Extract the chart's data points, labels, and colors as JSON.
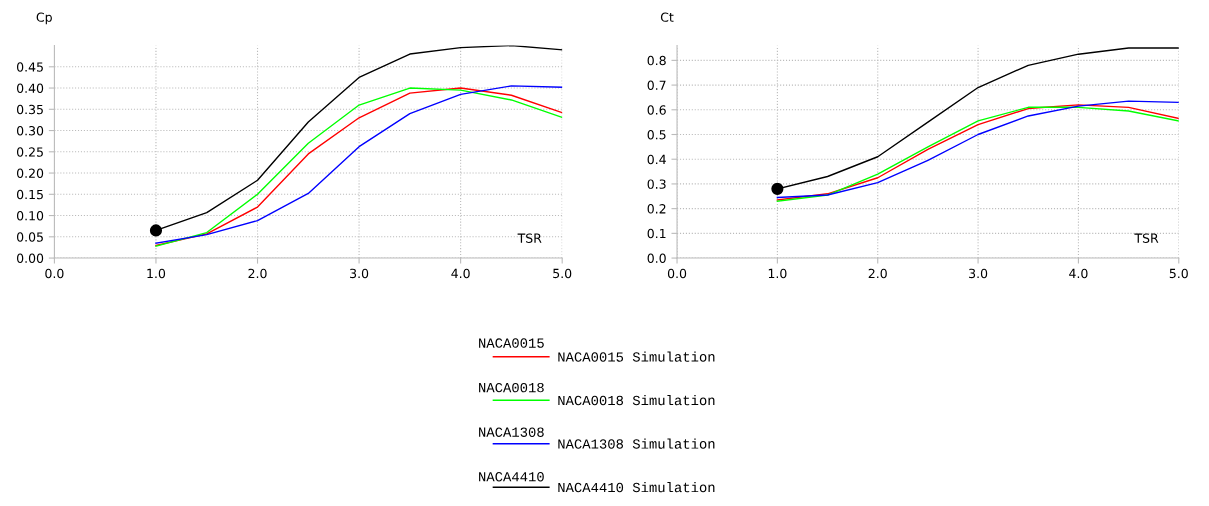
{
  "chart_data": [
    {
      "type": "line",
      "ylabel": "Cp",
      "xlabel": "TSR",
      "x": [
        1.0,
        1.5,
        2.0,
        2.5,
        3.0,
        3.5,
        4.0,
        4.5,
        5.0
      ],
      "xlim": [
        0,
        5
      ],
      "xticks": [
        {
          "value": 0,
          "label": "0.0"
        },
        {
          "value": 1,
          "label": "1.0"
        },
        {
          "value": 2,
          "label": "2.0"
        },
        {
          "value": 3,
          "label": "3.0"
        },
        {
          "value": 4,
          "label": "4.0"
        },
        {
          "value": 5,
          "label": "5.0"
        }
      ],
      "ylim": [
        0,
        0.5
      ],
      "yticks": [
        {
          "value": 0,
          "label": "0.00"
        },
        0.05,
        {
          "value": 0.1,
          "label": "0.10"
        },
        0.15,
        {
          "value": 0.2,
          "label": "0.20"
        },
        0.25,
        {
          "value": 0.3,
          "label": "0.30"
        },
        0.35,
        {
          "value": 0.4,
          "label": "0.40"
        },
        0.45
      ],
      "grid": true,
      "legend": "bottom",
      "marker": "none",
      "line_style": "solid",
      "annotations": [
        "NACA0015",
        "NACA0018",
        "NACA1308",
        "NACA4410"
      ],
      "series": [
        {
          "name": "NACA0015 Simulation",
          "color": "#ff0000",
          "values": [
            0.03,
            0.057,
            0.12,
            0.245,
            0.33,
            0.388,
            0.4,
            0.383,
            0.342
          ]
        },
        {
          "name": "NACA0018 Simulation",
          "color": "#00ff00",
          "values": [
            0.028,
            0.06,
            0.15,
            0.27,
            0.36,
            0.4,
            0.395,
            0.372,
            0.331
          ]
        },
        {
          "name": "NACA1308 Simulation",
          "color": "#0000ff",
          "values": [
            0.035,
            0.055,
            0.088,
            0.152,
            0.262,
            0.34,
            0.385,
            0.405,
            0.402
          ]
        },
        {
          "name": "NACA4410 Simulation",
          "color": "#000000",
          "values": [
            0.065,
            0.107,
            0.183,
            0.32,
            0.425,
            0.48,
            0.495,
            0.5,
            0.49
          ]
        },
        {
          "type": "scatter",
          "marker": "circle",
          "color": "#000000",
          "x": [
            1.0
          ],
          "values": [
            0.065
          ]
        }
      ]
    },
    {
      "type": "line",
      "ylabel": "Ct",
      "xlabel": "TSR",
      "x": [
        1.0,
        1.5,
        2.0,
        2.5,
        3.0,
        3.5,
        4.0,
        4.5,
        5.0
      ],
      "xlim": [
        0,
        5
      ],
      "xticks": [
        {
          "value": 0,
          "label": "0.0"
        },
        {
          "value": 1,
          "label": "1.0"
        },
        {
          "value": 2,
          "label": "2.0"
        },
        {
          "value": 3,
          "label": "3.0"
        },
        {
          "value": 4,
          "label": "4.0"
        },
        {
          "value": 5,
          "label": "5.0"
        }
      ],
      "ylim": [
        0,
        0.86
      ],
      "yticks": [
        {
          "value": 0,
          "label": "0.0"
        },
        0.1,
        0.2,
        0.3,
        0.4,
        0.5,
        0.6,
        0.7,
        0.8
      ],
      "grid": true,
      "marker": "none",
      "line_style": "solid",
      "series": [
        {
          "color": "#ff0000",
          "values": [
            0.235,
            0.26,
            0.325,
            0.44,
            0.54,
            0.605,
            0.62,
            0.61,
            0.565
          ]
        },
        {
          "color": "#00ff00",
          "values": [
            0.23,
            0.255,
            0.34,
            0.45,
            0.555,
            0.61,
            0.61,
            0.595,
            0.555
          ]
        },
        {
          "color": "#0000ff",
          "values": [
            0.245,
            0.255,
            0.305,
            0.395,
            0.5,
            0.575,
            0.615,
            0.635,
            0.63
          ]
        },
        {
          "color": "#000000",
          "values": [
            0.28,
            0.33,
            0.41,
            0.55,
            0.69,
            0.78,
            0.825,
            0.85,
            0.85
          ]
        },
        {
          "type": "scatter",
          "marker": "circle",
          "color": "#000000",
          "x": [
            1.0
          ],
          "values": [
            0.28
          ]
        }
      ]
    }
  ]
}
